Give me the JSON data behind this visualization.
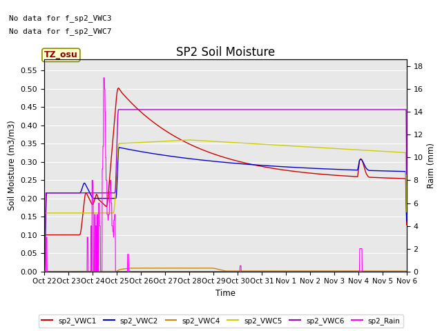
{
  "title": "SP2 Soil Moisture",
  "ylabel_left": "Soil Moisture (m3/m3)",
  "ylabel_right": "Raim (mm)",
  "xlabel": "Time",
  "no_data_text": [
    "No data for f_sp2_VWC3",
    "No data for f_sp2_VWC7"
  ],
  "tz_label": "TZ_osu",
  "ylim_left": [
    0.0,
    0.58
  ],
  "ylim_right": [
    0.0,
    18.6
  ],
  "yticks_left": [
    0.0,
    0.05,
    0.1,
    0.15,
    0.2,
    0.25,
    0.3,
    0.35,
    0.4,
    0.45,
    0.5,
    0.55
  ],
  "yticks_right": [
    0,
    2,
    4,
    6,
    8,
    10,
    12,
    14,
    16,
    18
  ],
  "xtick_labels": [
    "Oct 22",
    "Oct 23",
    "Oct 24",
    "Oct 25",
    "Oct 26",
    "Oct 27",
    "Oct 28",
    "Oct 29",
    "Oct 30",
    "Oct 31",
    "Nov 1",
    "Nov 2",
    "Nov 3",
    "Nov 4",
    "Nov 5",
    "Nov 6"
  ],
  "colors": {
    "sp2_VWC1": "#cc0000",
    "sp2_VWC2": "#0000cc",
    "sp2_VWC4": "#cc8800",
    "sp2_VWC5": "#cccc00",
    "sp2_VWC6": "#aa00cc",
    "sp2_Rain": "#ff00ff"
  },
  "background_color": "#e8e8e8",
  "legend_entries": [
    "sp2_VWC1",
    "sp2_VWC2",
    "sp2_VWC4",
    "sp2_VWC5",
    "sp2_VWC6",
    "sp2_Rain"
  ],
  "legend_colors": [
    "#cc0000",
    "#0000cc",
    "#cc8800",
    "#cccc00",
    "#aa00cc",
    "#ff00ff"
  ]
}
